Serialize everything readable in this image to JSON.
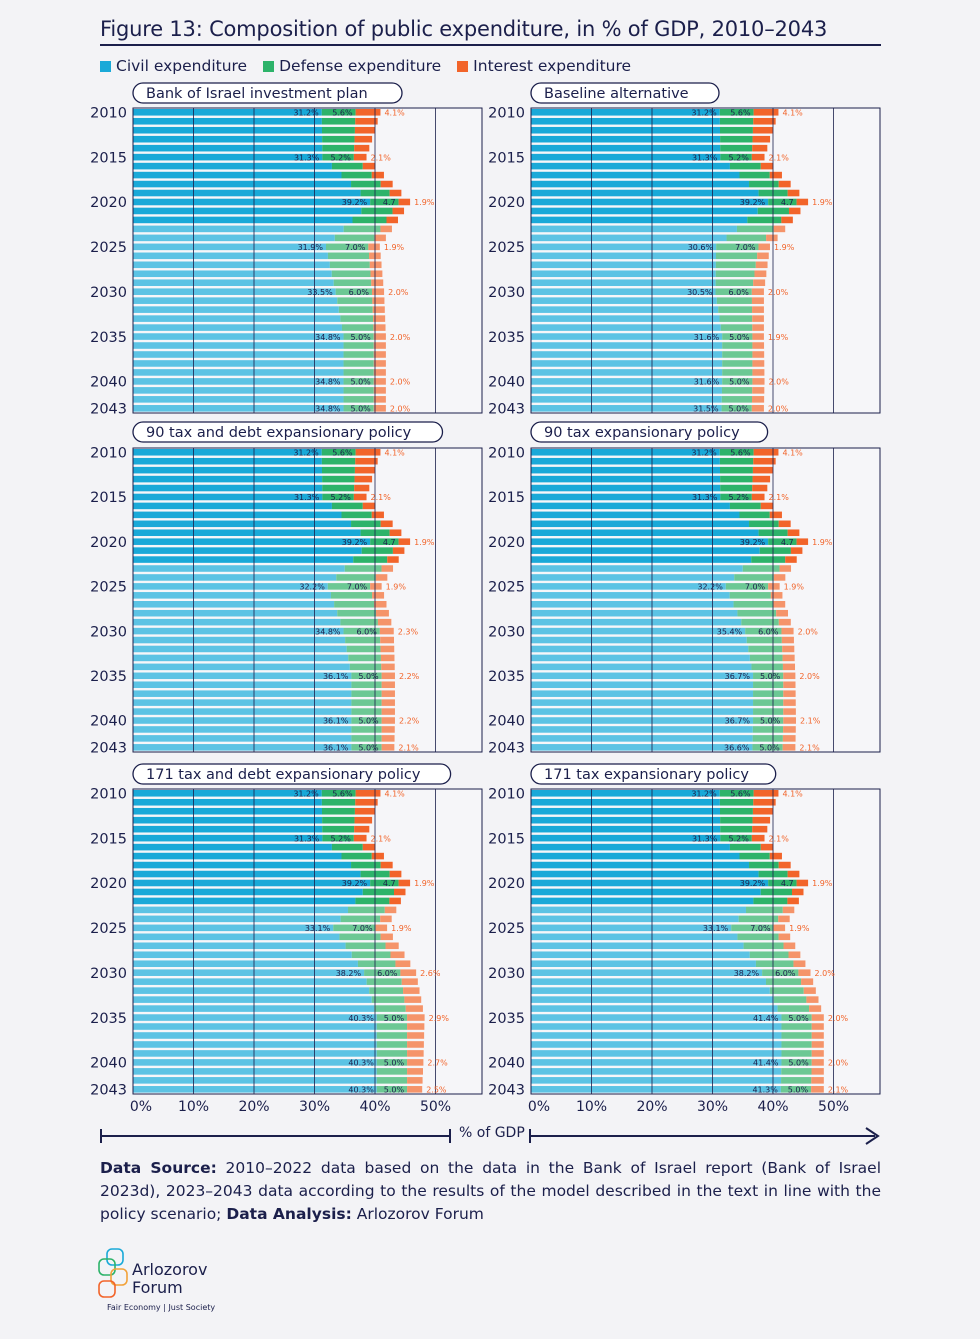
{
  "title": "Figure 13: Composition of public expenditure, in % of GDP, 2010–2043",
  "legend": [
    {
      "label": "Civil expenditure",
      "color": "#1aa9d8"
    },
    {
      "label": "Defense expenditure",
      "color": "#2db36a"
    },
    {
      "label": "Interest expenditure",
      "color": "#f2642a"
    }
  ],
  "colors": {
    "civil": "#1aa9d8",
    "defense": "#2db36a",
    "interest": "#f2642a",
    "civil_proj": "#5cc3e4",
    "defense_proj": "#6cc894",
    "interest_proj": "#f5946a",
    "navy": "#1b1f4b"
  },
  "axis": {
    "ticks": [
      "0%",
      "10%",
      "20%",
      "30%",
      "40%",
      "50%"
    ],
    "label": "% of GDP"
  },
  "source": {
    "prefix": "Data Source:",
    "text": " 2010–2022 data based on the data in the Bank of Israel report (Bank of Israel 2023d), 2023–2043 data according to the results of the model described in the text in line with the policy scenario;",
    "analysis_prefix": "Data Analysis:",
    "analysis": " Arlozorov Forum"
  },
  "logo": {
    "name_line1": "Arlozorov",
    "name_line2": "Forum",
    "tagline": "Fair Economy | Just Society"
  },
  "chart_data": [
    {
      "type": "bar",
      "orientation": "horizontal",
      "stacked": true,
      "title": "Bank of Israel investment plan",
      "year_labels": [
        "2010",
        "2015",
        "2020",
        "2025",
        "2030",
        "2035",
        "2040",
        "2043"
      ],
      "xlim": [
        0,
        57
      ],
      "keypoints": [
        {
          "year": 2010,
          "civil": 31.2,
          "defense": 5.6,
          "interest": 4.1
        },
        {
          "year": 2015,
          "civil": 31.3,
          "defense": 5.2,
          "interest": 2.1
        },
        {
          "year": 2020,
          "civil": 39.2,
          "defense": 4.7,
          "interest": 1.9
        },
        {
          "year": 2025,
          "civil": 31.9,
          "defense": 7.0,
          "interest": 1.9
        },
        {
          "year": 2030,
          "civil": 33.5,
          "defense": 6.0,
          "interest": 2.0
        },
        {
          "year": 2035,
          "civil": 34.8,
          "defense": 5.0,
          "interest": 2.0
        },
        {
          "year": 2040,
          "civil": 34.8,
          "defense": 5.0,
          "interest": 2.0
        },
        {
          "year": 2043,
          "civil": 34.8,
          "defense": 5.0,
          "interest": 2.0
        }
      ]
    },
    {
      "type": "bar",
      "orientation": "horizontal",
      "stacked": true,
      "title": "Baseline alternative",
      "year_labels": [
        "2010",
        "2015",
        "2020",
        "2025",
        "2030",
        "2035",
        "2040",
        "2043"
      ],
      "xlim": [
        0,
        57
      ],
      "keypoints": [
        {
          "year": 2010,
          "civil": 31.2,
          "defense": 5.6,
          "interest": 4.1
        },
        {
          "year": 2015,
          "civil": 31.3,
          "defense": 5.2,
          "interest": 2.1
        },
        {
          "year": 2020,
          "civil": 39.2,
          "defense": 4.7,
          "interest": 1.9
        },
        {
          "year": 2025,
          "civil": 30.6,
          "defense": 7.0,
          "interest": 1.9
        },
        {
          "year": 2030,
          "civil": 30.5,
          "defense": 6.0,
          "interest": 2.0
        },
        {
          "year": 2035,
          "civil": 31.6,
          "defense": 5.0,
          "interest": 1.9
        },
        {
          "year": 2040,
          "civil": 31.6,
          "defense": 5.0,
          "interest": 2.0
        },
        {
          "year": 2043,
          "civil": 31.5,
          "defense": 5.0,
          "interest": 2.0
        }
      ]
    },
    {
      "type": "bar",
      "orientation": "horizontal",
      "stacked": true,
      "title": "90 tax and debt expansionary policy",
      "year_labels": [
        "2010",
        "2015",
        "2020",
        "2025",
        "2030",
        "2035",
        "2040",
        "2043"
      ],
      "xlim": [
        0,
        57
      ],
      "keypoints": [
        {
          "year": 2010,
          "civil": 31.2,
          "defense": 5.6,
          "interest": 4.1
        },
        {
          "year": 2015,
          "civil": 31.3,
          "defense": 5.2,
          "interest": 2.1
        },
        {
          "year": 2020,
          "civil": 39.2,
          "defense": 4.7,
          "interest": 1.9
        },
        {
          "year": 2025,
          "civil": 32.2,
          "defense": 7.0,
          "interest": 1.9
        },
        {
          "year": 2030,
          "civil": 34.8,
          "defense": 6.0,
          "interest": 2.3
        },
        {
          "year": 2035,
          "civil": 36.1,
          "defense": 5.0,
          "interest": 2.2
        },
        {
          "year": 2040,
          "civil": 36.1,
          "defense": 5.0,
          "interest": 2.2
        },
        {
          "year": 2043,
          "civil": 36.1,
          "defense": 5.0,
          "interest": 2.1
        }
      ]
    },
    {
      "type": "bar",
      "orientation": "horizontal",
      "stacked": true,
      "title": "90 tax expansionary policy",
      "year_labels": [
        "2010",
        "2015",
        "2020",
        "2025",
        "2030",
        "2035",
        "2040",
        "2043"
      ],
      "xlim": [
        0,
        57
      ],
      "keypoints": [
        {
          "year": 2010,
          "civil": 31.2,
          "defense": 5.6,
          "interest": 4.1
        },
        {
          "year": 2015,
          "civil": 31.3,
          "defense": 5.2,
          "interest": 2.1
        },
        {
          "year": 2020,
          "civil": 39.2,
          "defense": 4.7,
          "interest": 1.9
        },
        {
          "year": 2025,
          "civil": 32.2,
          "defense": 7.0,
          "interest": 1.9
        },
        {
          "year": 2030,
          "civil": 35.4,
          "defense": 6.0,
          "interest": 2.0
        },
        {
          "year": 2035,
          "civil": 36.7,
          "defense": 5.0,
          "interest": 2.0
        },
        {
          "year": 2040,
          "civil": 36.7,
          "defense": 5.0,
          "interest": 2.1
        },
        {
          "year": 2043,
          "civil": 36.6,
          "defense": 5.0,
          "interest": 2.1
        }
      ]
    },
    {
      "type": "bar",
      "orientation": "horizontal",
      "stacked": true,
      "title": "171 tax and debt expansionary policy",
      "year_labels": [
        "2010",
        "2015",
        "2020",
        "2025",
        "2030",
        "2035",
        "2040",
        "2043"
      ],
      "xlim": [
        0,
        57
      ],
      "keypoints": [
        {
          "year": 2010,
          "civil": 31.2,
          "defense": 5.6,
          "interest": 4.1
        },
        {
          "year": 2015,
          "civil": 31.3,
          "defense": 5.2,
          "interest": 2.1
        },
        {
          "year": 2020,
          "civil": 39.2,
          "defense": 4.7,
          "interest": 1.9
        },
        {
          "year": 2025,
          "civil": 33.1,
          "defense": 7.0,
          "interest": 1.9
        },
        {
          "year": 2030,
          "civil": 38.2,
          "defense": 6.0,
          "interest": 2.6
        },
        {
          "year": 2035,
          "civil": 40.3,
          "defense": 5.0,
          "interest": 2.9
        },
        {
          "year": 2040,
          "civil": 40.3,
          "defense": 5.0,
          "interest": 2.7
        },
        {
          "year": 2043,
          "civil": 40.3,
          "defense": 5.0,
          "interest": 2.5
        }
      ]
    },
    {
      "type": "bar",
      "orientation": "horizontal",
      "stacked": true,
      "title": "171 tax expansionary policy",
      "year_labels": [
        "2010",
        "2015",
        "2020",
        "2025",
        "2030",
        "2035",
        "2040",
        "2043"
      ],
      "xlim": [
        0,
        57
      ],
      "keypoints": [
        {
          "year": 2010,
          "civil": 31.2,
          "defense": 5.6,
          "interest": 4.1
        },
        {
          "year": 2015,
          "civil": 31.3,
          "defense": 5.2,
          "interest": 2.1
        },
        {
          "year": 2020,
          "civil": 39.2,
          "defense": 4.7,
          "interest": 1.9
        },
        {
          "year": 2025,
          "civil": 33.1,
          "defense": 7.0,
          "interest": 1.9
        },
        {
          "year": 2030,
          "civil": 38.2,
          "defense": 6.0,
          "interest": 2.0
        },
        {
          "year": 2035,
          "civil": 41.4,
          "defense": 5.0,
          "interest": 2.0
        },
        {
          "year": 2040,
          "civil": 41.4,
          "defense": 5.0,
          "interest": 2.0
        },
        {
          "year": 2043,
          "civil": 41.3,
          "defense": 5.0,
          "interest": 2.1
        }
      ]
    }
  ]
}
